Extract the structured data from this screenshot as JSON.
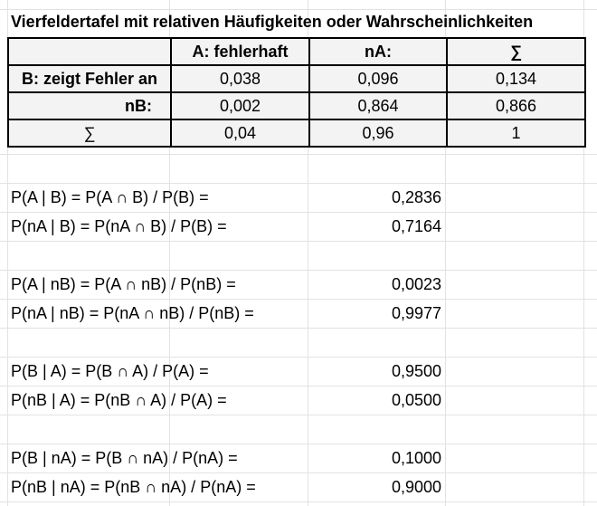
{
  "title": "Vierfeldertafel mit relativen Häufigkeiten oder Wahrscheinlichkeiten",
  "table": {
    "headers": [
      "",
      "A: fehlerhaft",
      "nA:",
      "∑"
    ],
    "rows": [
      {
        "label": "B: zeigt Fehler an",
        "values": [
          "0,038",
          "0,096",
          "0,134"
        ]
      },
      {
        "label": "nB:",
        "values": [
          "0,002",
          "0,864",
          "0,866"
        ]
      },
      {
        "label": "∑",
        "values": [
          "0,04",
          "0,96",
          "1"
        ]
      }
    ]
  },
  "formulas": [
    {
      "text": "P(A | B) = P(A ∩ B) / P(B) =",
      "value": "0,2836"
    },
    {
      "text": "P(nA | B) = P(nA ∩ B) / P(B) =",
      "value": "0,7164"
    },
    {
      "text": "P(A | nB) = P(A ∩ nB) / P(nB) =",
      "value": "0,0023"
    },
    {
      "text": "P(nA | nB) = P(nA ∩ nB) / P(nB) =",
      "value": "0,9977"
    },
    {
      "text": "P(B | A) = P(B ∩ A) / P(A) =",
      "value": "0,9500"
    },
    {
      "text": "P(nB | A) = P(nB ∩ A) / P(A) =",
      "value": "0,0500"
    },
    {
      "text": "P(B | nA) = P(B ∩ nA) / P(nA) =",
      "value": "0,1000"
    },
    {
      "text": "P(nB | nA) = P(nB ∩ nA) / P(nA) =",
      "value": "0,9000"
    }
  ]
}
